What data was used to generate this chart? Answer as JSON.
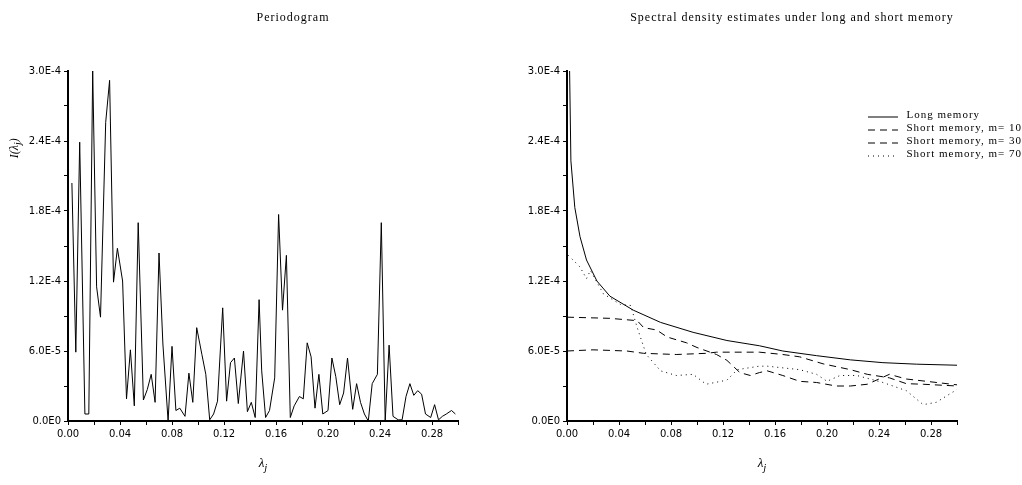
{
  "chart_data": [
    {
      "type": "line",
      "title": "Periodogram",
      "xlabel": "λ$_{j}$",
      "ylabel": "I(λ$_{j}$)",
      "legend": false,
      "marker": "none",
      "grid": false,
      "line_style": "solid",
      "xlim": [
        0,
        0.3
      ],
      "ylim": [
        0,
        0.0003
      ],
      "xticks": [
        {
          "value": 0,
          "label": "0.00"
        },
        {
          "value": 0.02,
          "label": null
        },
        {
          "value": 0.04,
          "label": "0.04"
        },
        {
          "value": 0.06,
          "label": null
        },
        {
          "value": 0.08,
          "label": "0.08"
        },
        {
          "value": 0.1,
          "label": null
        },
        {
          "value": 0.12,
          "label": "0.12"
        },
        {
          "value": 0.14,
          "label": null
        },
        {
          "value": 0.16,
          "label": "0.16"
        },
        {
          "value": 0.18,
          "label": null
        },
        {
          "value": 0.2,
          "label": "0.20"
        },
        {
          "value": 0.22,
          "label": null
        },
        {
          "value": 0.24,
          "label": "0.24"
        },
        {
          "value": 0.26,
          "label": null
        },
        {
          "value": 0.28,
          "label": "0.28"
        },
        {
          "value": 0.3,
          "label": null
        }
      ],
      "yticks": [
        {
          "value": 0,
          "label": "0.0E0"
        },
        {
          "value": 3e-05,
          "label": null
        },
        {
          "value": 6e-05,
          "label": "6.0E-5"
        },
        {
          "value": 9e-05,
          "label": null
        },
        {
          "value": 0.00012,
          "label": "1.2E-4"
        },
        {
          "value": 0.00015,
          "label": null
        },
        {
          "value": 0.00018,
          "label": "1.8E-4"
        },
        {
          "value": 0.00021,
          "label": null
        },
        {
          "value": 0.00024,
          "label": "2.4E-4"
        },
        {
          "value": 0.00027,
          "label": null
        },
        {
          "value": 0.0003,
          "label": "3.0E-4"
        }
      ],
      "series": [
        {
          "color": "#000000",
          "x": [
            0.003,
            0.006,
            0.009,
            0.013,
            0.016,
            0.019,
            0.022,
            0.025,
            0.029,
            0.032,
            0.035,
            0.038,
            0.042,
            0.045,
            0.048,
            0.051,
            0.054,
            0.058,
            0.061,
            0.064,
            0.067,
            0.07,
            0.073,
            0.077,
            0.08,
            0.083,
            0.086,
            0.09,
            0.093,
            0.096,
            0.099,
            0.103,
            0.106,
            0.109,
            0.112,
            0.115,
            0.119,
            0.122,
            0.125,
            0.128,
            0.131,
            0.135,
            0.138,
            0.141,
            0.144,
            0.147,
            0.149,
            0.152,
            0.155,
            0.159,
            0.162,
            0.165,
            0.168,
            0.171,
            0.174,
            0.178,
            0.181,
            0.184,
            0.187,
            0.19,
            0.193,
            0.196,
            0.2,
            0.203,
            0.206,
            0.209,
            0.212,
            0.215,
            0.219,
            0.222,
            0.225,
            0.228,
            0.231,
            0.234,
            0.238,
            0.241,
            0.244,
            0.247,
            0.25,
            0.254,
            0.257,
            0.26,
            0.263,
            0.266,
            0.269,
            0.272,
            0.275,
            0.279,
            0.282,
            0.285,
            0.288,
            0.291,
            0.295,
            0.298
          ],
          "values": [
            0.000204,
            5.9e-05,
            0.000239,
            6e-06,
            6e-06,
            0.0003,
            0.000115,
            8.9e-05,
            0.000256,
            0.000292,
            0.000119,
            0.000148,
            0.00012,
            1.9e-05,
            6.1e-05,
            1.3e-05,
            0.00017,
            1.8e-05,
            2.7e-05,
            4e-05,
            1.6e-05,
            0.000144,
            6.6e-05,
            0,
            6.4e-05,
            9e-06,
            1.1e-05,
            4e-06,
            4.1e-05,
            1.6e-05,
            8e-05,
            5.7e-05,
            4e-05,
            1e-06,
            6e-06,
            1.7e-05,
            9.7e-05,
            1.7e-05,
            5e-05,
            5.4e-05,
            1.5e-05,
            6e-05,
            8e-06,
            1.6e-05,
            3e-06,
            0.000104,
            4.3e-05,
            3e-06,
            9e-06,
            3.7e-05,
            0.000177,
            9.5e-05,
            0.000142,
            3e-06,
            1.3e-05,
            2.1e-05,
            1.9e-05,
            6.7e-05,
            5.5e-05,
            1.1e-05,
            4e-05,
            6e-06,
            9e-06,
            5.4e-05,
            3.8e-05,
            1.4e-05,
            2.4e-05,
            5.4e-05,
            1e-05,
            3.2e-05,
            1.6e-05,
            6e-06,
            0,
            3.2e-05,
            4e-05,
            0.00017,
            0,
            6.5e-05,
            4e-06,
            1e-06,
            1e-06,
            2.1e-05,
            3.2e-05,
            2.2e-05,
            2.6e-05,
            2.3e-05,
            6e-06,
            3e-06,
            1.4e-05,
            1e-06,
            4e-06,
            6e-06,
            9e-06,
            6e-06
          ]
        }
      ]
    },
    {
      "type": "line",
      "title": "Spectral density estimates under long and short memory",
      "xlabel": "λ$_{j}$",
      "legend": "top right",
      "marker": "none",
      "grid": false,
      "xlim": [
        0,
        0.3
      ],
      "ylim": [
        0,
        0.0003
      ],
      "xticks": [
        {
          "value": 0,
          "label": "0.00"
        },
        {
          "value": 0.02,
          "label": null
        },
        {
          "value": 0.04,
          "label": "0.04"
        },
        {
          "value": 0.06,
          "label": null
        },
        {
          "value": 0.08,
          "label": "0.08"
        },
        {
          "value": 0.1,
          "label": null
        },
        {
          "value": 0.12,
          "label": "0.12"
        },
        {
          "value": 0.14,
          "label": null
        },
        {
          "value": 0.16,
          "label": "0.16"
        },
        {
          "value": 0.18,
          "label": null
        },
        {
          "value": 0.2,
          "label": "0.20"
        },
        {
          "value": 0.22,
          "label": null
        },
        {
          "value": 0.24,
          "label": "0.24"
        },
        {
          "value": 0.26,
          "label": null
        },
        {
          "value": 0.28,
          "label": "0.28"
        },
        {
          "value": 0.3,
          "label": null
        }
      ],
      "yticks": [
        {
          "value": 0,
          "label": "0.0E0"
        },
        {
          "value": 3e-05,
          "label": null
        },
        {
          "value": 6e-05,
          "label": "6.0E-5"
        },
        {
          "value": 9e-05,
          "label": null
        },
        {
          "value": 0.00012,
          "label": "1.2E-4"
        },
        {
          "value": 0.00015,
          "label": null
        },
        {
          "value": 0.00018,
          "label": "1.8E-4"
        },
        {
          "value": 0.00021,
          "label": null
        },
        {
          "value": 0.00024,
          "label": "2.4E-4"
        },
        {
          "value": 0.00027,
          "label": null
        },
        {
          "value": 0.0003,
          "label": "3.0E-4"
        }
      ],
      "series": [
        {
          "name": "Long memory",
          "color": "#000000",
          "line_style": "solid",
          "x": [
            0.002,
            0.003,
            0.006,
            0.01,
            0.015,
            0.023,
            0.033,
            0.051,
            0.072,
            0.097,
            0.123,
            0.148,
            0.166,
            0.192,
            0.218,
            0.243,
            0.269,
            0.3
          ],
          "values": [
            0.0003,
            0.000223,
            0.000183,
            0.000158,
            0.000138,
            0.00012,
            0.000107,
            9.5e-05,
            8.45e-05,
            7.6e-05,
            6.9e-05,
            6.45e-05,
            6e-05,
            5.6e-05,
            5.24e-05,
            5e-05,
            4.87e-05,
            4.78e-05
          ]
        },
        {
          "name": "Short memory, m= 10",
          "color": "#000000",
          "line_style": "dashed",
          "x": [
            0,
            0.02,
            0.046,
            0.059,
            0.084,
            0.107,
            0.115,
            0.128,
            0.148,
            0.166,
            0.179,
            0.197,
            0.218,
            0.231,
            0.248,
            0.261,
            0.274,
            0.3
          ],
          "values": [
            6e-05,
            6.1e-05,
            6e-05,
            5.8e-05,
            5.7e-05,
            5.8e-05,
            5.9e-05,
            5.9e-05,
            5.9e-05,
            5.7e-05,
            5.5e-05,
            4.9e-05,
            4.4e-05,
            4e-05,
            3.7e-05,
            3.2e-05,
            3.15e-05,
            3e-05
          ]
        },
        {
          "name": "Short memory, m= 30",
          "color": "#000000",
          "line_style": "dashed",
          "x": [
            0,
            0.033,
            0.054,
            0.059,
            0.069,
            0.077,
            0.092,
            0.1,
            0.11,
            0.115,
            0.123,
            0.133,
            0.141,
            0.148,
            0.154,
            0.166,
            0.179,
            0.192,
            0.207,
            0.218,
            0.231,
            0.248,
            0.261,
            0.3
          ],
          "values": [
            8.9e-05,
            8.8e-05,
            8.6e-05,
            8e-05,
            7.8e-05,
            7.2e-05,
            6.7e-05,
            6.3e-05,
            5.9e-05,
            5.7e-05,
            5.2e-05,
            4.15e-05,
            3.9e-05,
            4.15e-05,
            4.3e-05,
            3.9e-05,
            3.4e-05,
            3.3e-05,
            3e-05,
            3e-05,
            3.15e-05,
            4e-05,
            3.6e-05,
            3.1e-05
          ]
        },
        {
          "name": "Short memory, m= 70",
          "color": "#000000",
          "line_style": "dotted",
          "x": [
            0.001,
            0.01,
            0.015,
            0.018,
            0.028,
            0.041,
            0.049,
            0.054,
            0.061,
            0.072,
            0.084,
            0.097,
            0.107,
            0.123,
            0.131,
            0.148,
            0.154,
            0.179,
            0.192,
            0.2,
            0.21,
            0.223,
            0.243,
            0.261,
            0.274,
            0.284,
            0.3
          ],
          "values": [
            0.000142,
            0.000132,
            0.000122,
            0.000129,
            0.000109,
            0.0001,
            9.9e-05,
            8e-05,
            5.7e-05,
            4.3e-05,
            3.9e-05,
            4e-05,
            3.15e-05,
            3.5e-05,
            4.4e-05,
            4.7e-05,
            4.7e-05,
            4.4e-05,
            4e-05,
            3.4e-05,
            3.9e-05,
            3.9e-05,
            3.3e-05,
            2.6e-05,
            1.4e-05,
            1.6e-05,
            2.7e-05
          ]
        }
      ]
    }
  ]
}
